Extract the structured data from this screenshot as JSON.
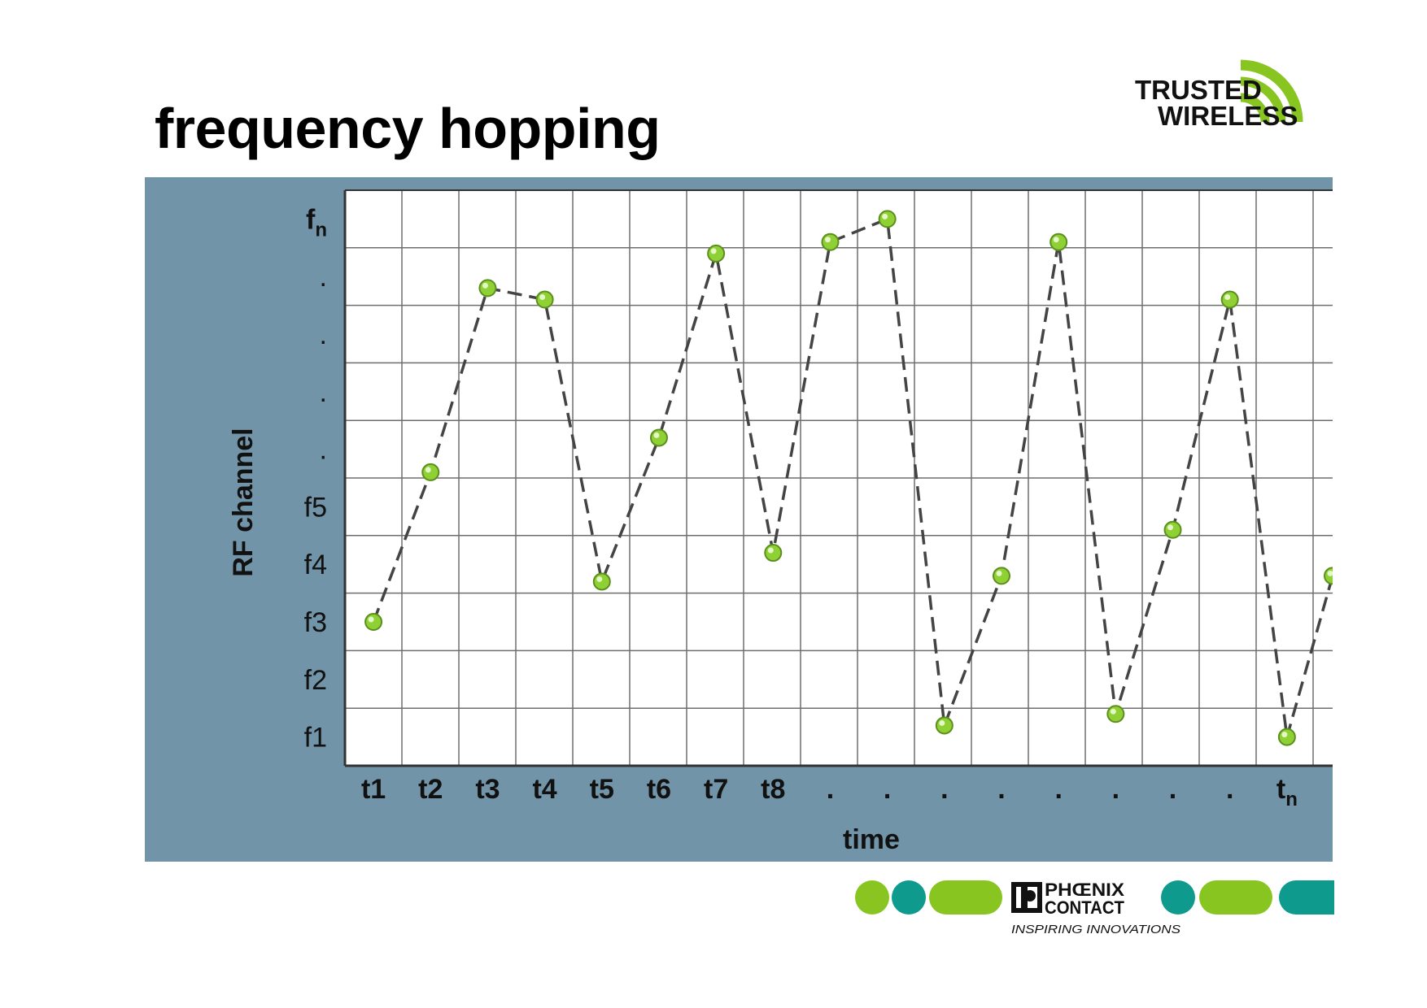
{
  "title": "frequency hopping",
  "colors": {
    "panel": "#7294a9",
    "grid": "#6e6e6e",
    "point": "#8fd035",
    "brand_green": "#88c521",
    "brand_teal": "#0f9a8e"
  },
  "chart_data": {
    "type": "line",
    "xlabel": "time",
    "ylabel": "RF channel",
    "x_ticks": [
      {
        "main": "t1",
        "sub": ""
      },
      {
        "main": "t2",
        "sub": ""
      },
      {
        "main": "t3",
        "sub": ""
      },
      {
        "main": "t4",
        "sub": ""
      },
      {
        "main": "t5",
        "sub": ""
      },
      {
        "main": "t6",
        "sub": ""
      },
      {
        "main": "t7",
        "sub": ""
      },
      {
        "main": "t8",
        "sub": ""
      },
      {
        "main": ".",
        "sub": ""
      },
      {
        "main": ".",
        "sub": ""
      },
      {
        "main": ".",
        "sub": ""
      },
      {
        "main": ".",
        "sub": ""
      },
      {
        "main": ".",
        "sub": ""
      },
      {
        "main": ".",
        "sub": ""
      },
      {
        "main": ".",
        "sub": ""
      },
      {
        "main": ".",
        "sub": ""
      },
      {
        "main": "t",
        "sub": "n"
      }
    ],
    "y_ticks": [
      {
        "main": "f1",
        "sub": ""
      },
      {
        "main": "f2",
        "sub": ""
      },
      {
        "main": "f3",
        "sub": ""
      },
      {
        "main": "f4",
        "sub": ""
      },
      {
        "main": "f5",
        "sub": ""
      },
      {
        "main": ".",
        "sub": ""
      },
      {
        "main": ".",
        "sub": ""
      },
      {
        "main": ".",
        "sub": ""
      },
      {
        "main": ".",
        "sub": ""
      },
      {
        "main": "f",
        "sub": "n"
      }
    ],
    "xlim": [
      0.5,
      17.8
    ],
    "ylim": [
      0.5,
      10.5
    ],
    "grid": true,
    "line_style": "dashed",
    "points": [
      {
        "x": 1,
        "y": 3.0
      },
      {
        "x": 2,
        "y": 5.6
      },
      {
        "x": 3,
        "y": 8.8
      },
      {
        "x": 4,
        "y": 8.6
      },
      {
        "x": 5,
        "y": 3.7
      },
      {
        "x": 6,
        "y": 6.2
      },
      {
        "x": 7,
        "y": 9.4
      },
      {
        "x": 8,
        "y": 4.2
      },
      {
        "x": 9,
        "y": 9.6
      },
      {
        "x": 10,
        "y": 10.0
      },
      {
        "x": 11,
        "y": 1.2
      },
      {
        "x": 12,
        "y": 3.8
      },
      {
        "x": 13,
        "y": 9.6
      },
      {
        "x": 14,
        "y": 1.4
      },
      {
        "x": 15,
        "y": 4.6
      },
      {
        "x": 16,
        "y": 8.6
      },
      {
        "x": 17,
        "y": 1.0
      },
      {
        "x": 17.8,
        "y": 3.8
      }
    ]
  },
  "trusted_wireless_logo": {
    "line1": "TRUSTED",
    "line2": "WIRELESS"
  },
  "phoenix_logo": {
    "line1": "PHŒNIX",
    "line2": "CONTACT",
    "tagline": "INSPIRING INNOVATIONS"
  }
}
